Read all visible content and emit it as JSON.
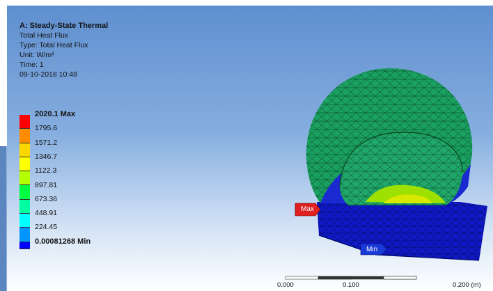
{
  "analysis": {
    "title": "A: Steady-State Thermal",
    "result": "Total Heat Flux",
    "type": "Type: Total Heat Flux",
    "unit": "Unit: W/m²",
    "time": "Time: 1",
    "timestamp": "09-10-2018 10:48"
  },
  "legend": {
    "levels": [
      {
        "label": "2020.1 Max",
        "color": "#ff0000"
      },
      {
        "label": "1795.6",
        "color": "#ff8c00"
      },
      {
        "label": "1571.2",
        "color": "#ffd700"
      },
      {
        "label": "1346.7",
        "color": "#ffff00"
      },
      {
        "label": "1122.3",
        "color": "#b4ff00"
      },
      {
        "label": "897.81",
        "color": "#00ff40"
      },
      {
        "label": "673.36",
        "color": "#00ffa0"
      },
      {
        "label": "448.91",
        "color": "#00ffff"
      },
      {
        "label": "224.45",
        "color": "#0096ff"
      },
      {
        "label": "0.00081268 Min",
        "color": "#0000ff"
      }
    ]
  },
  "probes": {
    "max_label": "Max",
    "min_label": "Min",
    "max_color": "#e02020",
    "min_color": "#1a3ad8"
  },
  "scale_bar": {
    "labels": [
      "0.000",
      "0.100",
      "0.200 (m)"
    ]
  }
}
